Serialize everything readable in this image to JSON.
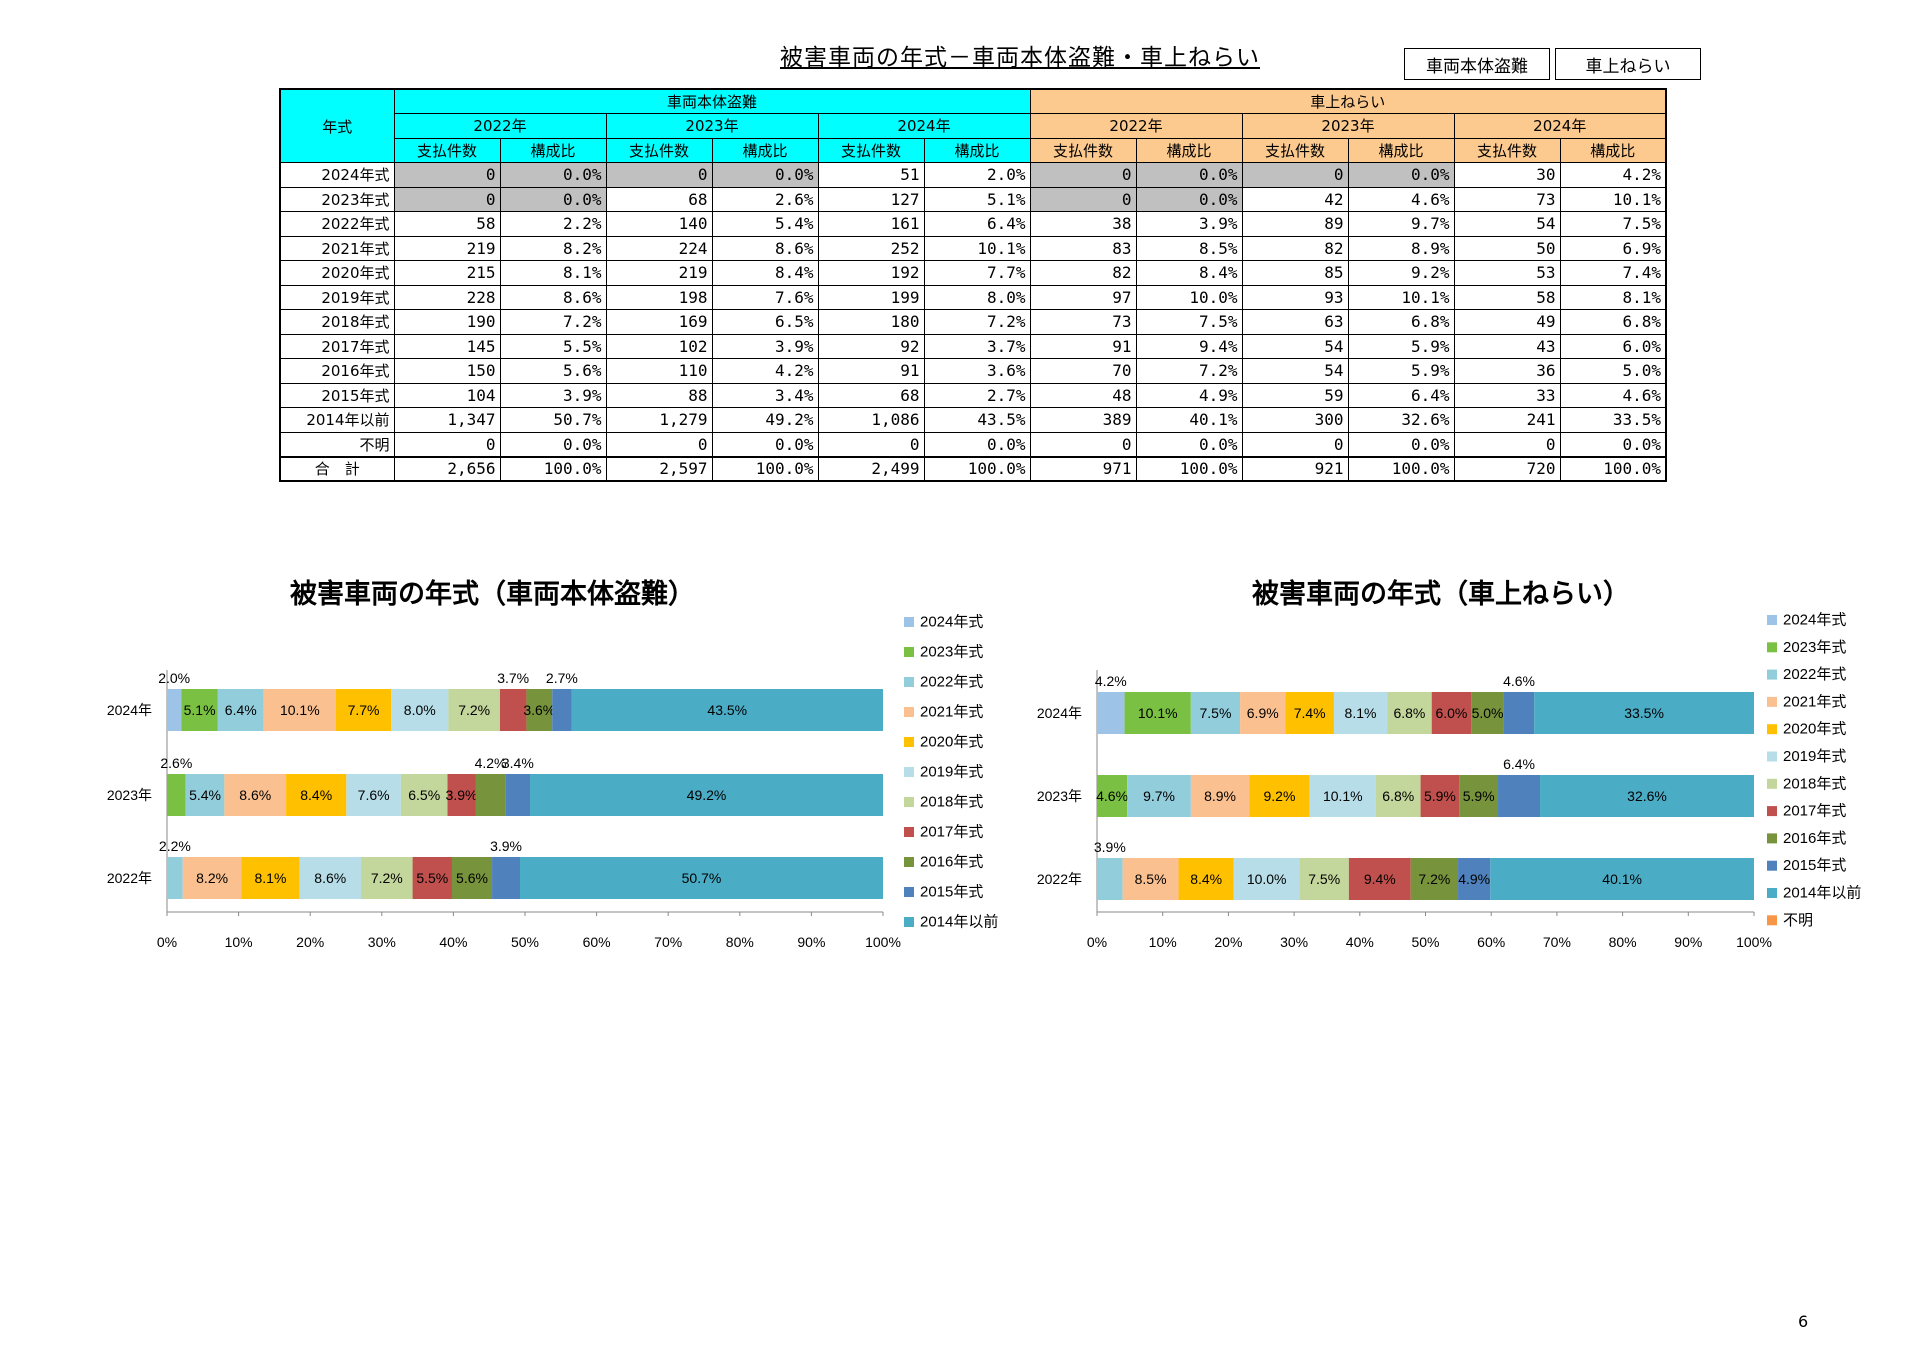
{
  "header": {
    "title": "被害車両の年式－車両本体盗難・車上ねらい",
    "legend_theft": "車両本体盗難",
    "legend_onboard": "車上ねらい"
  },
  "table": {
    "corner_label": "年式",
    "group_theft": "車両本体盗難",
    "group_onboard": "車上ねらい",
    "years": [
      "2022年",
      "2023年",
      "2024年"
    ],
    "col_count": "支払件数",
    "col_ratio": "構成比",
    "rows": [
      {
        "label": "2024年式",
        "cells": [
          "0",
          "0.0%",
          "0",
          "0.0%",
          "51",
          "2.0%",
          "0",
          "0.0%",
          "0",
          "0.0%",
          "30",
          "4.2%"
        ]
      },
      {
        "label": "2023年式",
        "cells": [
          "0",
          "0.0%",
          "68",
          "2.6%",
          "127",
          "5.1%",
          "0",
          "0.0%",
          "42",
          "4.6%",
          "73",
          "10.1%"
        ]
      },
      {
        "label": "2022年式",
        "cells": [
          "58",
          "2.2%",
          "140",
          "5.4%",
          "161",
          "6.4%",
          "38",
          "3.9%",
          "89",
          "9.7%",
          "54",
          "7.5%"
        ]
      },
      {
        "label": "2021年式",
        "cells": [
          "219",
          "8.2%",
          "224",
          "8.6%",
          "252",
          "10.1%",
          "83",
          "8.5%",
          "82",
          "8.9%",
          "50",
          "6.9%"
        ]
      },
      {
        "label": "2020年式",
        "cells": [
          "215",
          "8.1%",
          "219",
          "8.4%",
          "192",
          "7.7%",
          "82",
          "8.4%",
          "85",
          "9.2%",
          "53",
          "7.4%"
        ]
      },
      {
        "label": "2019年式",
        "cells": [
          "228",
          "8.6%",
          "198",
          "7.6%",
          "199",
          "8.0%",
          "97",
          "10.0%",
          "93",
          "10.1%",
          "58",
          "8.1%"
        ]
      },
      {
        "label": "2018年式",
        "cells": [
          "190",
          "7.2%",
          "169",
          "6.5%",
          "180",
          "7.2%",
          "73",
          "7.5%",
          "63",
          "6.8%",
          "49",
          "6.8%"
        ]
      },
      {
        "label": "2017年式",
        "cells": [
          "145",
          "5.5%",
          "102",
          "3.9%",
          "92",
          "3.7%",
          "91",
          "9.4%",
          "54",
          "5.9%",
          "43",
          "6.0%"
        ]
      },
      {
        "label": "2016年式",
        "cells": [
          "150",
          "5.6%",
          "110",
          "4.2%",
          "91",
          "3.6%",
          "70",
          "7.2%",
          "54",
          "5.9%",
          "36",
          "5.0%"
        ]
      },
      {
        "label": "2015年式",
        "cells": [
          "104",
          "3.9%",
          "88",
          "3.4%",
          "68",
          "2.7%",
          "48",
          "4.9%",
          "59",
          "6.4%",
          "33",
          "4.6%"
        ]
      },
      {
        "label": "2014年以前",
        "cells": [
          "1,347",
          "50.7%",
          "1,279",
          "49.2%",
          "1,086",
          "43.5%",
          "389",
          "40.1%",
          "300",
          "32.6%",
          "241",
          "33.5%"
        ]
      },
      {
        "label": "不明",
        "cells": [
          "0",
          "0.0%",
          "0",
          "0.0%",
          "0",
          "0.0%",
          "0",
          "0.0%",
          "0",
          "0.0%",
          "0",
          "0.0%"
        ]
      }
    ],
    "total": {
      "label": "合　計",
      "cells": [
        "2,656",
        "100.0%",
        "2,597",
        "100.0%",
        "2,499",
        "100.0%",
        "971",
        "100.0%",
        "921",
        "100.0%",
        "720",
        "100.0%"
      ]
    }
  },
  "charts_text": {
    "left_title": "被害車両の年式（車両本体盗難）",
    "right_title": "被害車両の年式（車上ねらい）"
  },
  "page_number": "6",
  "chart_data": [
    {
      "type": "bar",
      "orientation": "horizontal-stacked-100",
      "title": "被害車両の年式（車両本体盗難）",
      "categories": [
        "2024年",
        "2023年",
        "2022年"
      ],
      "x_ticks": [
        "0%",
        "10%",
        "20%",
        "30%",
        "40%",
        "50%",
        "60%",
        "70%",
        "80%",
        "90%",
        "100%"
      ],
      "legend_position": "right",
      "series": [
        {
          "name": "2024年式",
          "color": "#9dc3e6",
          "values": [
            2.0,
            0,
            0
          ],
          "labels": [
            "",
            "",
            ""
          ],
          "outside": [
            "2.0%",
            "",
            ""
          ]
        },
        {
          "name": "2023年式",
          "color": "#7ac143",
          "values": [
            5.1,
            2.6,
            0
          ],
          "labels": [
            "5.1%",
            "",
            ""
          ],
          "outside": [
            "",
            "2.6%",
            ""
          ]
        },
        {
          "name": "2022年式",
          "color": "#92cddc",
          "values": [
            6.4,
            5.4,
            2.2
          ],
          "labels": [
            "6.4%",
            "5.4%",
            ""
          ],
          "outside": [
            "",
            "",
            "2.2%"
          ]
        },
        {
          "name": "2021年式",
          "color": "#fac090",
          "values": [
            10.1,
            8.6,
            8.2
          ],
          "labels": [
            "10.1%",
            "8.6%",
            "8.2%"
          ],
          "outside": [
            "",
            "",
            ""
          ]
        },
        {
          "name": "2020年式",
          "color": "#ffc000",
          "values": [
            7.7,
            8.4,
            8.1
          ],
          "labels": [
            "7.7%",
            "8.4%",
            "8.1%"
          ],
          "outside": [
            "",
            "",
            ""
          ]
        },
        {
          "name": "2019年式",
          "color": "#b7dee8",
          "values": [
            8.0,
            7.6,
            8.6
          ],
          "labels": [
            "8.0%",
            "7.6%",
            "8.6%"
          ],
          "outside": [
            "",
            "",
            ""
          ]
        },
        {
          "name": "2018年式",
          "color": "#c3d69b",
          "values": [
            7.2,
            6.5,
            7.2
          ],
          "labels": [
            "7.2%",
            "6.5%",
            "7.2%"
          ],
          "outside": [
            "",
            "",
            ""
          ]
        },
        {
          "name": "2017年式",
          "color": "#c0504d",
          "values": [
            3.7,
            3.9,
            5.5
          ],
          "labels": [
            "",
            "3.9%",
            "5.5%"
          ],
          "outside": [
            "3.7%",
            "",
            ""
          ]
        },
        {
          "name": "2016年式",
          "color": "#77933c",
          "values": [
            3.6,
            4.2,
            5.6
          ],
          "labels": [
            "3.6%",
            "",
            "5.6%"
          ],
          "outside": [
            "",
            "4.2%",
            ""
          ]
        },
        {
          "name": "2015年式",
          "color": "#4f81bd",
          "values": [
            2.7,
            3.4,
            3.9
          ],
          "labels": [
            "",
            "",
            ""
          ],
          "outside": [
            "2.7%",
            "3.4%",
            "3.9%"
          ]
        },
        {
          "name": "2014年以前",
          "color": "#4bacc6",
          "values": [
            43.5,
            49.2,
            50.7
          ],
          "labels": [
            "43.5%",
            "49.2%",
            "50.7%"
          ],
          "outside": [
            "",
            "",
            ""
          ]
        }
      ]
    },
    {
      "type": "bar",
      "orientation": "horizontal-stacked-100",
      "title": "被害車両の年式（車上ねらい）",
      "categories": [
        "2024年",
        "2023年",
        "2022年"
      ],
      "x_ticks": [
        "0%",
        "10%",
        "20%",
        "30%",
        "40%",
        "50%",
        "60%",
        "70%",
        "80%",
        "90%",
        "100%"
      ],
      "legend_position": "right",
      "series": [
        {
          "name": "2024年式",
          "color": "#9dc3e6",
          "values": [
            4.2,
            0,
            0
          ],
          "labels": [
            "",
            "",
            ""
          ],
          "outside": [
            "4.2%",
            "",
            ""
          ]
        },
        {
          "name": "2023年式",
          "color": "#7ac143",
          "values": [
            10.1,
            4.6,
            0
          ],
          "labels": [
            "10.1%",
            "4.6%",
            ""
          ],
          "outside": [
            "",
            "",
            ""
          ]
        },
        {
          "name": "2022年式",
          "color": "#92cddc",
          "values": [
            7.5,
            9.7,
            3.9
          ],
          "labels": [
            "7.5%",
            "9.7%",
            ""
          ],
          "outside": [
            "",
            "",
            "3.9%"
          ]
        },
        {
          "name": "2021年式",
          "color": "#fac090",
          "values": [
            6.9,
            8.9,
            8.5
          ],
          "labels": [
            "6.9%",
            "8.9%",
            "8.5%"
          ],
          "outside": [
            "",
            "",
            ""
          ]
        },
        {
          "name": "2020年式",
          "color": "#ffc000",
          "values": [
            7.4,
            9.2,
            8.4
          ],
          "labels": [
            "7.4%",
            "9.2%",
            "8.4%"
          ],
          "outside": [
            "",
            "",
            ""
          ]
        },
        {
          "name": "2019年式",
          "color": "#b7dee8",
          "values": [
            8.1,
            10.1,
            10.0
          ],
          "labels": [
            "8.1%",
            "10.1%",
            "10.0%"
          ],
          "outside": [
            "",
            "",
            ""
          ]
        },
        {
          "name": "2018年式",
          "color": "#c3d69b",
          "values": [
            6.8,
            6.8,
            7.5
          ],
          "labels": [
            "6.8%",
            "6.8%",
            "7.5%"
          ],
          "outside": [
            "",
            "",
            ""
          ]
        },
        {
          "name": "2017年式",
          "color": "#c0504d",
          "values": [
            6.0,
            5.9,
            9.4
          ],
          "labels": [
            "6.0%",
            "5.9%",
            "9.4%"
          ],
          "outside": [
            "",
            "",
            ""
          ]
        },
        {
          "name": "2016年式",
          "color": "#77933c",
          "values": [
            5.0,
            5.9,
            7.2
          ],
          "labels": [
            "5.0%",
            "5.9%",
            "7.2%"
          ],
          "outside": [
            "",
            "",
            ""
          ]
        },
        {
          "name": "2015年式",
          "color": "#4f81bd",
          "values": [
            4.6,
            6.4,
            4.9
          ],
          "labels": [
            "",
            "",
            "4.9%"
          ],
          "outside": [
            "4.6%",
            "6.4%",
            ""
          ]
        },
        {
          "name": "2014年以前",
          "color": "#4bacc6",
          "values": [
            33.5,
            32.6,
            40.1
          ],
          "labels": [
            "33.5%",
            "32.6%",
            "40.1%"
          ],
          "outside": [
            "",
            "",
            ""
          ]
        },
        {
          "name": "不明",
          "color": "#f79646",
          "values": [
            0,
            0,
            0
          ],
          "labels": [
            "",
            "",
            ""
          ],
          "outside": [
            "",
            "",
            ""
          ]
        }
      ]
    }
  ]
}
